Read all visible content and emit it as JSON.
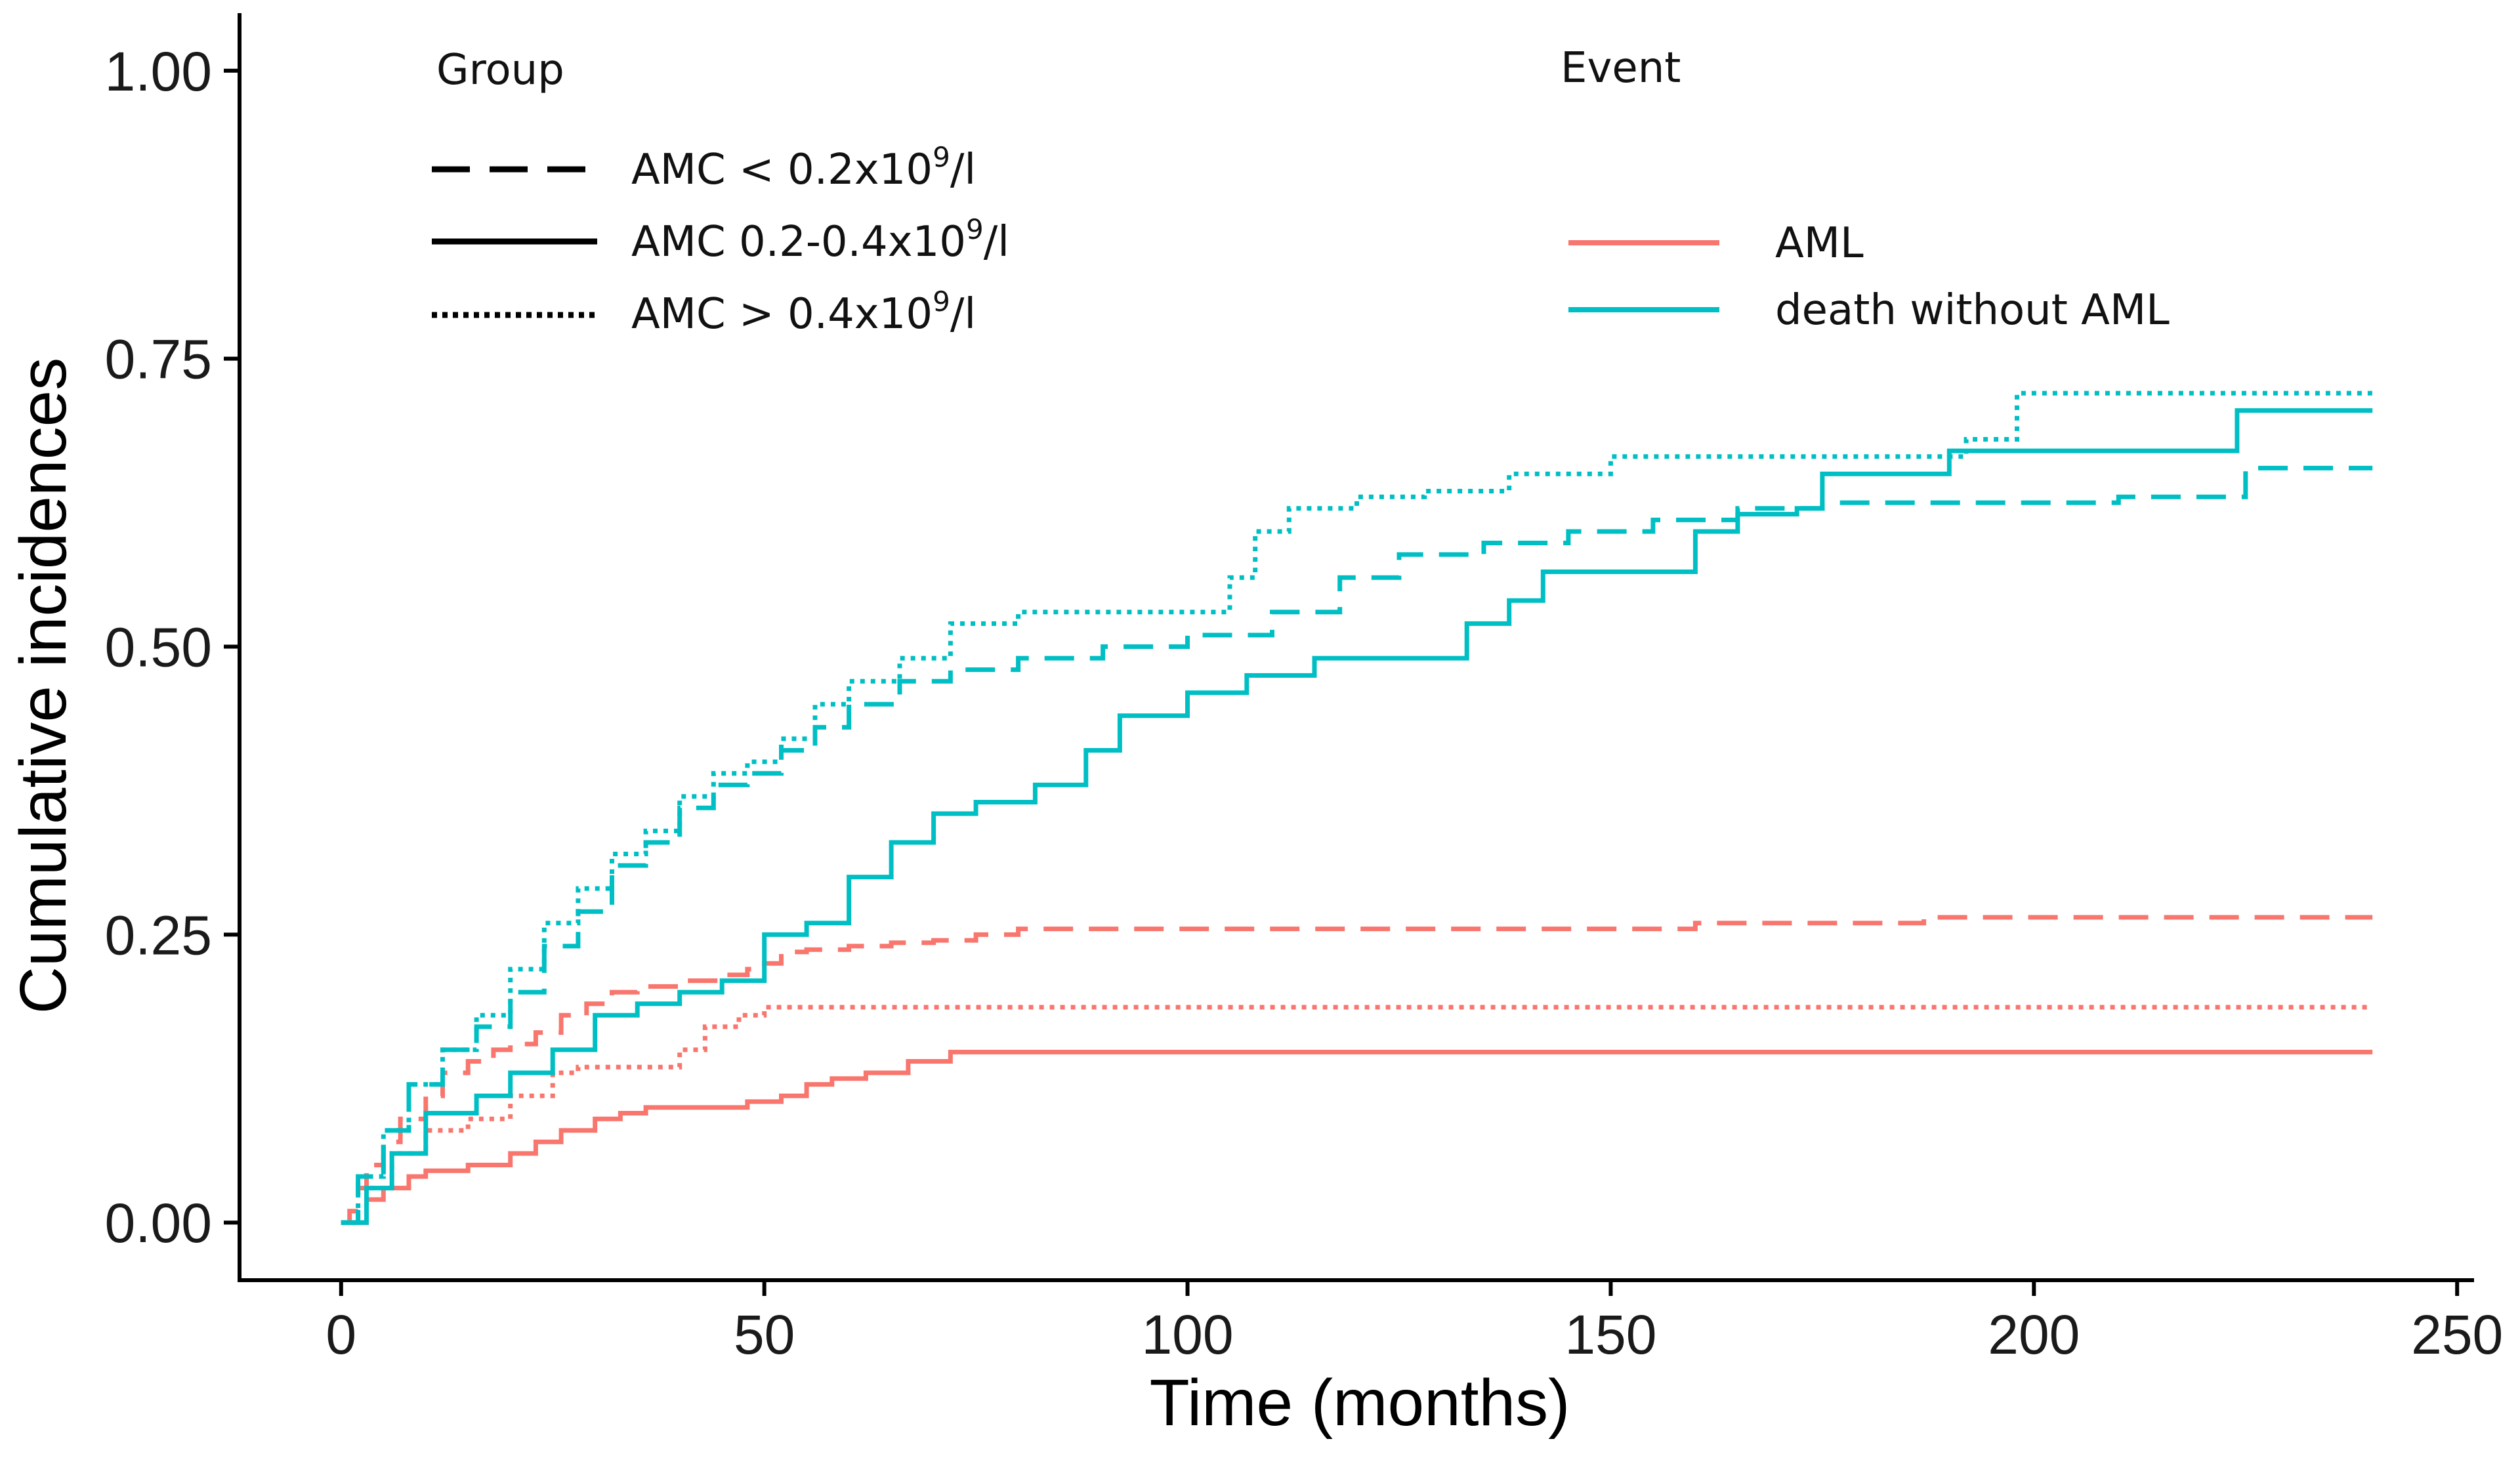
{
  "chart_data": {
    "type": "line",
    "title": "",
    "xlabel": "Time (months)",
    "ylabel": "Cumulative incidences",
    "xlim": [
      -12,
      252
    ],
    "ylim": [
      -0.05,
      1.05
    ],
    "xticks": [
      0,
      50,
      100,
      150,
      200,
      250
    ],
    "yticks": [
      0,
      0.25,
      0.5,
      0.75,
      1.0
    ],
    "xtick_labels": [
      "0",
      "50",
      "100",
      "150",
      "200",
      "250"
    ],
    "ytick_labels": [
      "0.00",
      "0.25",
      "0.50",
      "0.75",
      "1.00"
    ],
    "grid": false,
    "legend": {
      "group": {
        "title": "Group",
        "items": [
          {
            "name": "dashed",
            "pre": "AMC < 0.2x10",
            "sup": "9",
            "post": "/l",
            "dash": "dashed"
          },
          {
            "name": "solid",
            "pre": "AMC 0.2-0.4x10",
            "sup": "9",
            "post": "/l",
            "dash": "solid"
          },
          {
            "name": "dotted",
            "pre": "AMC > 0.4x10",
            "sup": "9",
            "post": "/l",
            "dash": "dotted"
          }
        ]
      },
      "event": {
        "title": "Event",
        "items": [
          {
            "label": "AML",
            "color": "#f8766d"
          },
          {
            "label": "death without AML",
            "color": "#00bfc4"
          }
        ]
      }
    },
    "series": [
      {
        "name": "AML, AMC < 0.2x10^9/l",
        "event": "AML",
        "group": "dashed",
        "color": "#f8766d",
        "dash": "dashed",
        "x": [
          0,
          1,
          2,
          3,
          5,
          7,
          10,
          12,
          15,
          18,
          20,
          23,
          26,
          29,
          32,
          35,
          40,
          45,
          48,
          50,
          52,
          55,
          60,
          65,
          70,
          75,
          80,
          90,
          100,
          110,
          120,
          130,
          140,
          150,
          160,
          175,
          187,
          200,
          225,
          240
        ],
        "y": [
          0,
          0.01,
          0.03,
          0.05,
          0.07,
          0.09,
          0.11,
          0.13,
          0.14,
          0.15,
          0.155,
          0.165,
          0.18,
          0.19,
          0.2,
          0.205,
          0.21,
          0.215,
          0.22,
          0.225,
          0.235,
          0.237,
          0.24,
          0.243,
          0.245,
          0.25,
          0.255,
          0.255,
          0.255,
          0.255,
          0.255,
          0.255,
          0.255,
          0.255,
          0.26,
          0.26,
          0.265,
          0.265,
          0.265,
          0.265
        ]
      },
      {
        "name": "AML, AMC 0.2-0.4x10^9/l",
        "event": "AML",
        "group": "solid",
        "color": "#f8766d",
        "dash": "solid",
        "x": [
          0,
          3,
          5,
          8,
          10,
          15,
          20,
          23,
          26,
          30,
          33,
          36,
          40,
          45,
          48,
          52,
          55,
          58,
          62,
          67,
          72,
          240
        ],
        "y": [
          0,
          0.02,
          0.03,
          0.04,
          0.045,
          0.05,
          0.06,
          0.07,
          0.08,
          0.09,
          0.095,
          0.1,
          0.1,
          0.1,
          0.105,
          0.11,
          0.12,
          0.125,
          0.13,
          0.14,
          0.148,
          0.148
        ]
      },
      {
        "name": "AML, AMC > 0.4x10^9/l",
        "event": "AML",
        "group": "dotted",
        "color": "#f8766d",
        "dash": "dotted",
        "x": [
          0,
          3,
          6,
          10,
          15,
          20,
          25,
          28,
          33,
          38,
          40,
          43,
          47,
          50,
          240
        ],
        "y": [
          0,
          0.03,
          0.06,
          0.08,
          0.09,
          0.11,
          0.13,
          0.135,
          0.135,
          0.135,
          0.15,
          0.17,
          0.18,
          0.187,
          0.187
        ]
      },
      {
        "name": "death without AML, AMC < 0.2x10^9/l",
        "event": "death without AML",
        "group": "dashed",
        "color": "#00bfc4",
        "dash": "dashed",
        "x": [
          0,
          2,
          5,
          8,
          12,
          16,
          20,
          24,
          28,
          32,
          36,
          40,
          44,
          48,
          52,
          56,
          60,
          66,
          72,
          80,
          90,
          100,
          110,
          118,
          125,
          135,
          145,
          155,
          165,
          175,
          190,
          210,
          225,
          240
        ],
        "y": [
          0,
          0.04,
          0.08,
          0.12,
          0.15,
          0.17,
          0.2,
          0.24,
          0.27,
          0.31,
          0.33,
          0.36,
          0.38,
          0.39,
          0.41,
          0.43,
          0.45,
          0.47,
          0.48,
          0.49,
          0.5,
          0.51,
          0.53,
          0.56,
          0.58,
          0.59,
          0.6,
          0.61,
          0.62,
          0.625,
          0.625,
          0.63,
          0.655,
          0.655
        ]
      },
      {
        "name": "death without AML, AMC 0.2-0.4x10^9/l",
        "event": "death without AML",
        "group": "solid",
        "color": "#00bfc4",
        "dash": "solid",
        "x": [
          0,
          3,
          6,
          10,
          16,
          20,
          25,
          30,
          35,
          40,
          45,
          48,
          50,
          52,
          55,
          60,
          65,
          70,
          75,
          82,
          88,
          92,
          100,
          107,
          115,
          125,
          133,
          138,
          142,
          150,
          160,
          165,
          172,
          175,
          190,
          224,
          240
        ],
        "y": [
          0,
          0.03,
          0.06,
          0.095,
          0.11,
          0.13,
          0.15,
          0.18,
          0.19,
          0.2,
          0.21,
          0.21,
          0.25,
          0.25,
          0.26,
          0.3,
          0.33,
          0.355,
          0.365,
          0.38,
          0.41,
          0.44,
          0.46,
          0.475,
          0.49,
          0.49,
          0.52,
          0.54,
          0.565,
          0.565,
          0.6,
          0.615,
          0.62,
          0.65,
          0.67,
          0.705,
          0.705
        ]
      },
      {
        "name": "death without AML, AMC > 0.4x10^9/l",
        "event": "death without AML",
        "group": "dotted",
        "color": "#00bfc4",
        "dash": "dotted",
        "x": [
          0,
          2,
          5,
          8,
          12,
          16,
          20,
          24,
          28,
          32,
          36,
          40,
          44,
          48,
          52,
          56,
          60,
          66,
          72,
          80,
          90,
          100,
          105,
          108,
          112,
          120,
          128,
          138,
          150,
          160,
          175,
          192,
          198,
          240
        ],
        "y": [
          0,
          0.04,
          0.08,
          0.12,
          0.15,
          0.18,
          0.22,
          0.26,
          0.29,
          0.32,
          0.34,
          0.37,
          0.39,
          0.4,
          0.42,
          0.45,
          0.47,
          0.49,
          0.52,
          0.53,
          0.53,
          0.53,
          0.56,
          0.6,
          0.62,
          0.63,
          0.635,
          0.65,
          0.665,
          0.665,
          0.665,
          0.68,
          0.72,
          0.72
        ]
      }
    ]
  }
}
